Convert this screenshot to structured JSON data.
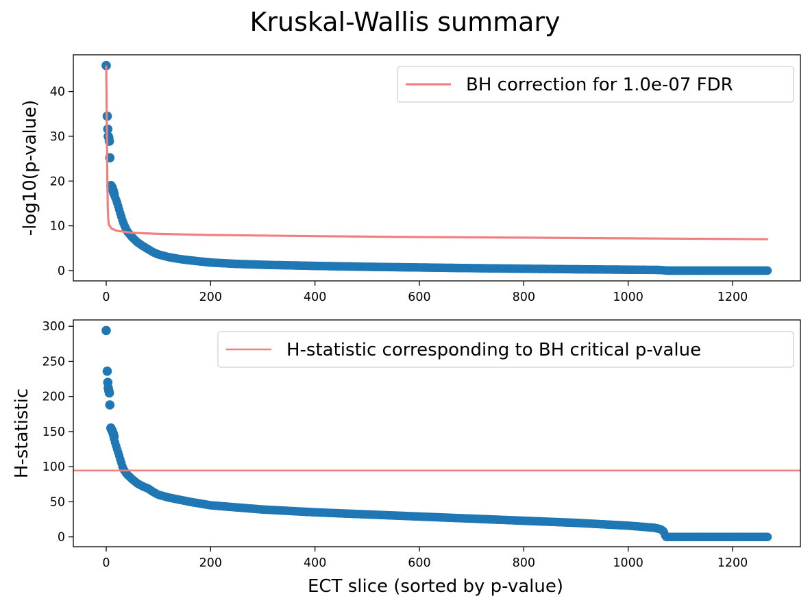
{
  "suptitle": "Kruskal-Wallis summary",
  "chart_data": [
    {
      "type": "scatter",
      "ylabel": "-log10(p-value)",
      "xlabel": "",
      "xlim": [
        -63,
        1330
      ],
      "ylim": [
        -2.3,
        48.2
      ],
      "xticks": [
        0,
        200,
        400,
        600,
        800,
        1000,
        1200
      ],
      "yticks": [
        0,
        10,
        20,
        30,
        40
      ],
      "grid": false,
      "legend_placement": "upper right",
      "legend": [
        {
          "label": "BH correction for 1.0e-07 FDR",
          "color": "#f08080",
          "style": "line"
        }
      ],
      "scatter_color": "#1f77b4",
      "outliers": [
        [
          0,
          45.8
        ],
        [
          2,
          34.5
        ],
        [
          3,
          31.6
        ],
        [
          4,
          30.0
        ],
        [
          5,
          29.7
        ],
        [
          6,
          28.9
        ],
        [
          7,
          25.2
        ],
        [
          9,
          19.0
        ],
        [
          10,
          18.8
        ],
        [
          11,
          18.6
        ],
        [
          12,
          18.3
        ],
        [
          13,
          18.0
        ],
        [
          14,
          17.6
        ],
        [
          15,
          17.2
        ]
      ],
      "curve_points": [
        [
          15,
          17.0
        ],
        [
          18,
          16.1
        ],
        [
          20,
          15.5
        ],
        [
          24,
          14.0
        ],
        [
          28,
          12.4
        ],
        [
          32,
          10.9
        ],
        [
          36,
          9.8
        ],
        [
          40,
          8.8
        ],
        [
          50,
          7.4
        ],
        [
          60,
          6.3
        ],
        [
          70,
          5.5
        ],
        [
          80,
          4.8
        ],
        [
          90,
          4.1
        ],
        [
          100,
          3.6
        ],
        [
          120,
          3.0
        ],
        [
          140,
          2.6
        ],
        [
          160,
          2.3
        ],
        [
          200,
          1.8
        ],
        [
          250,
          1.5
        ],
        [
          300,
          1.3
        ],
        [
          400,
          1.05
        ],
        [
          500,
          0.85
        ],
        [
          600,
          0.7
        ],
        [
          700,
          0.55
        ],
        [
          800,
          0.42
        ],
        [
          900,
          0.3
        ],
        [
          1000,
          0.2
        ],
        [
          1060,
          0.15
        ],
        [
          1075,
          0.0
        ],
        [
          1268,
          0.0
        ]
      ],
      "bh_line": [
        [
          0,
          45.8
        ],
        [
          1,
          35.0
        ],
        [
          2,
          22.0
        ],
        [
          3,
          14.0
        ],
        [
          4,
          11.5
        ],
        [
          5,
          10.3
        ],
        [
          10,
          9.4
        ],
        [
          20,
          8.9
        ],
        [
          50,
          8.45
        ],
        [
          100,
          8.2
        ],
        [
          200,
          7.95
        ],
        [
          400,
          7.7
        ],
        [
          600,
          7.5
        ],
        [
          800,
          7.35
        ],
        [
          1000,
          7.2
        ],
        [
          1268,
          7.0
        ]
      ]
    },
    {
      "type": "scatter",
      "ylabel": "H-statistic",
      "xlabel": "ECT slice (sorted by p-value)",
      "xlim": [
        -63,
        1330
      ],
      "ylim": [
        -14,
        309
      ],
      "xticks": [
        0,
        200,
        400,
        600,
        800,
        1000,
        1200
      ],
      "yticks": [
        0,
        50,
        100,
        150,
        200,
        250,
        300
      ],
      "grid": false,
      "legend_placement": "upper right",
      "legend": [
        {
          "label": "H-statistic corresponding to BH critical p-value",
          "color": "#f08080",
          "style": "line"
        }
      ],
      "scatter_color": "#1f77b4",
      "hline": 94.5,
      "outliers": [
        [
          0,
          294
        ],
        [
          2,
          236
        ],
        [
          3,
          220
        ],
        [
          4,
          212
        ],
        [
          5,
          208
        ],
        [
          6,
          205
        ],
        [
          7,
          188
        ],
        [
          9,
          155
        ],
        [
          10,
          153
        ],
        [
          11,
          152
        ],
        [
          12,
          150
        ],
        [
          13,
          148
        ],
        [
          14,
          146
        ],
        [
          15,
          143
        ]
      ],
      "curve_points": [
        [
          15,
          140
        ],
        [
          18,
          132
        ],
        [
          20,
          127
        ],
        [
          24,
          118
        ],
        [
          28,
          108
        ],
        [
          32,
          98
        ],
        [
          36,
          93
        ],
        [
          40,
          89
        ],
        [
          50,
          82
        ],
        [
          60,
          76
        ],
        [
          70,
          72
        ],
        [
          80,
          69
        ],
        [
          90,
          64
        ],
        [
          100,
          60
        ],
        [
          120,
          56
        ],
        [
          140,
          53
        ],
        [
          160,
          50
        ],
        [
          200,
          45
        ],
        [
          250,
          42
        ],
        [
          300,
          39
        ],
        [
          400,
          35
        ],
        [
          500,
          32
        ],
        [
          600,
          29
        ],
        [
          700,
          26
        ],
        [
          800,
          23
        ],
        [
          900,
          20
        ],
        [
          1000,
          16
        ],
        [
          1050,
          13
        ],
        [
          1062,
          11
        ],
        [
          1068,
          8
        ],
        [
          1072,
          0
        ],
        [
          1268,
          0
        ]
      ]
    }
  ]
}
